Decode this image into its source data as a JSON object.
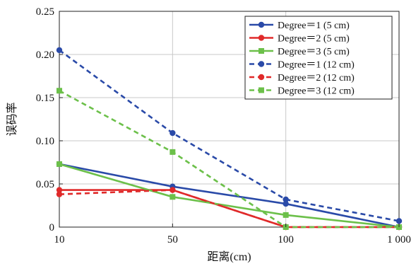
{
  "chart_data": {
    "type": "line",
    "xlabel": "距离(cm)",
    "ylabel": "误码率",
    "x_categories": [
      "10",
      "50",
      "100",
      "1 000"
    ],
    "y_ticks": [
      "0",
      "0.05",
      "0.10",
      "0.15",
      "0.20",
      "0.25"
    ],
    "ylim": [
      0,
      0.25
    ],
    "grid": true,
    "legend_position": "top-right",
    "series": [
      {
        "name": "Degree＝1 (5 cm)",
        "color": "#2a4aa8",
        "style": "solid",
        "marker": "circle",
        "values": [
          0.073,
          0.047,
          0.027,
          0.0
        ]
      },
      {
        "name": "Degree＝2 (5 cm)",
        "color": "#e02a2a",
        "style": "solid",
        "marker": "circle",
        "values": [
          0.043,
          0.043,
          0.0,
          0.0
        ]
      },
      {
        "name": "Degree＝3 (5 cm)",
        "color": "#6cc04a",
        "style": "solid",
        "marker": "square",
        "values": [
          0.073,
          0.035,
          0.014,
          0.0
        ]
      },
      {
        "name": "Degree＝1 (12 cm)",
        "color": "#2a4aa8",
        "style": "dashed",
        "marker": "circle",
        "values": [
          0.205,
          0.109,
          0.032,
          0.007
        ]
      },
      {
        "name": "Degree＝2 (12 cm)",
        "color": "#e02a2a",
        "style": "dashed",
        "marker": "circle",
        "values": [
          0.038,
          0.043,
          0.0,
          0.0
        ]
      },
      {
        "name": "Degree＝3 (12 cm)",
        "color": "#6cc04a",
        "style": "dashed",
        "marker": "square",
        "values": [
          0.158,
          0.087,
          0.0,
          0.0
        ]
      }
    ]
  }
}
